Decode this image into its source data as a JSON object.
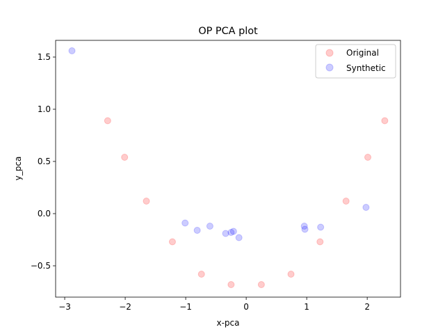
{
  "chart_data": {
    "type": "scatter",
    "title": "OP PCA plot",
    "xlabel": "x-pca",
    "ylabel": "y_pca",
    "xlim": [
      -3.15,
      2.55
    ],
    "ylim": [
      -0.8,
      1.66
    ],
    "xticks": [
      -3,
      -2,
      -1,
      0,
      1,
      2
    ],
    "xtick_labels": [
      "−3",
      "−2",
      "−1",
      "0",
      "1",
      "2"
    ],
    "yticks": [
      -0.5,
      0.0,
      0.5,
      1.0,
      1.5
    ],
    "ytick_labels": [
      "−0.5",
      "0.0",
      "0.5",
      "1.0",
      "1.5"
    ],
    "grid": false,
    "legend_position": "top-right",
    "series": [
      {
        "name": "Original",
        "color": "#ff0000",
        "alpha": 0.2,
        "points": [
          [
            -2.29,
            0.89
          ],
          [
            -2.01,
            0.54
          ],
          [
            -1.65,
            0.12
          ],
          [
            -1.22,
            -0.27
          ],
          [
            -0.74,
            -0.58
          ],
          [
            -0.25,
            -0.68
          ],
          [
            0.25,
            -0.68
          ],
          [
            0.74,
            -0.58
          ],
          [
            1.22,
            -0.27
          ],
          [
            1.65,
            0.12
          ],
          [
            2.01,
            0.54
          ],
          [
            2.29,
            0.89
          ]
        ]
      },
      {
        "name": "Synthetic",
        "color": "#0000ff",
        "alpha": 0.2,
        "points": [
          [
            -2.88,
            1.56
          ],
          [
            -1.01,
            -0.09
          ],
          [
            -0.81,
            -0.16
          ],
          [
            -0.6,
            -0.12
          ],
          [
            -0.34,
            -0.19
          ],
          [
            -0.25,
            -0.18
          ],
          [
            -0.21,
            -0.17
          ],
          [
            -0.12,
            -0.23
          ],
          [
            0.96,
            -0.12
          ],
          [
            0.97,
            -0.15
          ],
          [
            1.23,
            -0.13
          ],
          [
            1.98,
            0.06
          ]
        ]
      }
    ]
  }
}
